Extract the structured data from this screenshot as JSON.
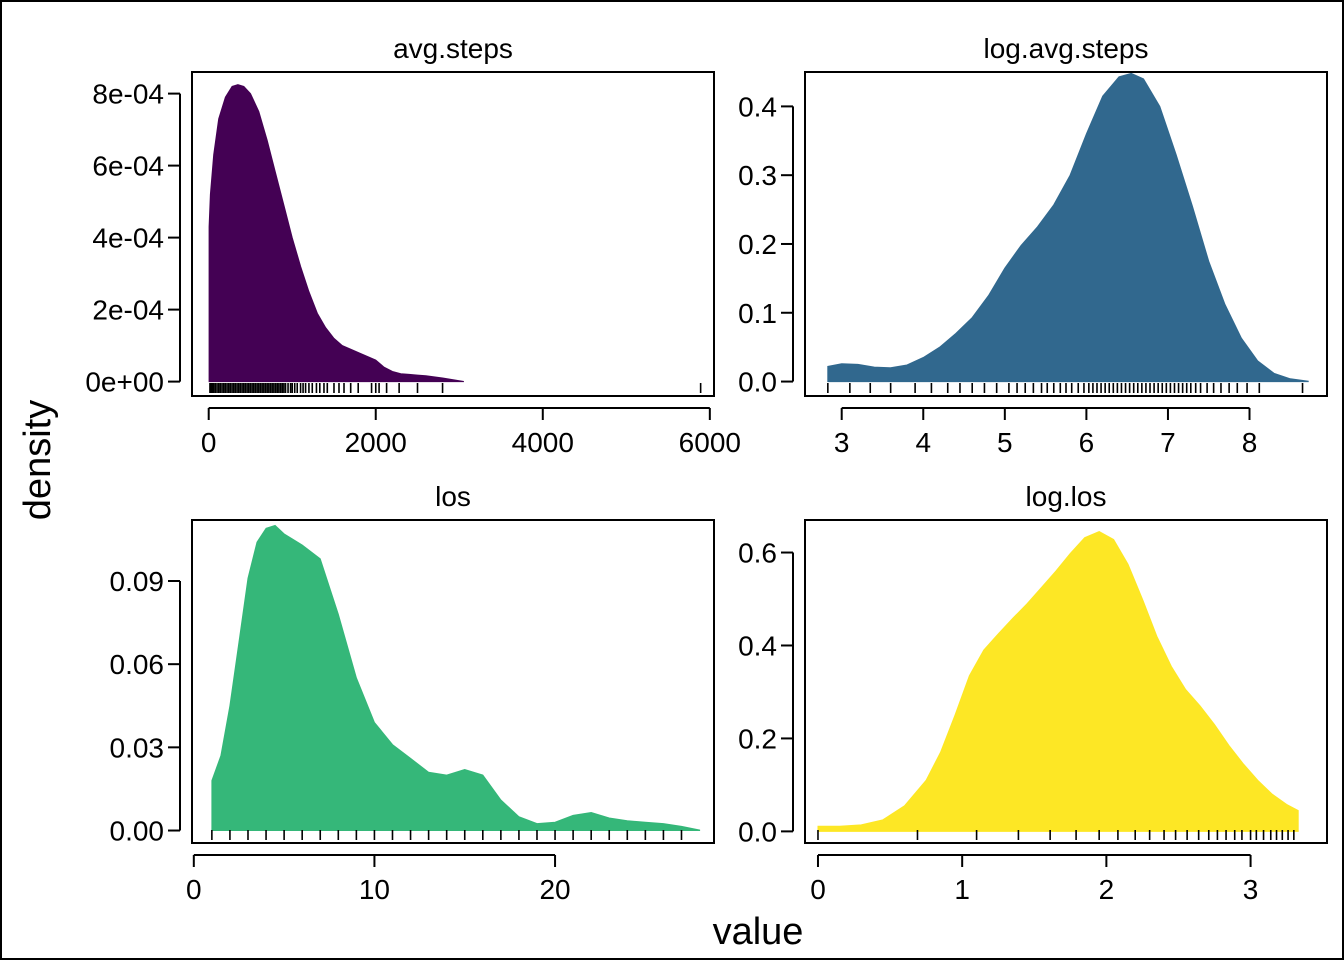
{
  "figure": {
    "xlabel": "value",
    "ylabel": "density"
  },
  "chart_data": [
    {
      "type": "area",
      "title": "avg.steps",
      "color": "#440154",
      "xlim": [
        -200,
        6050
      ],
      "ylim": [
        -4e-05,
        0.00086
      ],
      "xticks": [
        0,
        2000,
        4000,
        6000
      ],
      "xtick_labels": [
        "0",
        "2000",
        "4000",
        "6000"
      ],
      "yticks": [
        0,
        0.0002,
        0.0004,
        0.0006,
        0.0008
      ],
      "ytick_labels": [
        "0e+00",
        "2e-04",
        "4e-04",
        "6e-04",
        "8e-04"
      ],
      "x": [
        5,
        20,
        60,
        120,
        200,
        280,
        350,
        420,
        500,
        600,
        700,
        800,
        900,
        1000,
        1100,
        1200,
        1300,
        1400,
        1500,
        1600,
        1700,
        1800,
        1900,
        2000,
        2100,
        2200,
        2300,
        2400,
        2500,
        2600,
        2700,
        2800,
        2900,
        3050
      ],
      "y": [
        0.00043,
        0.00052,
        0.00063,
        0.00073,
        0.00079,
        0.00082,
        0.000825,
        0.00082,
        0.0008,
        0.00075,
        0.00067,
        0.00058,
        0.00049,
        0.0004,
        0.00032,
        0.00025,
        0.00019,
        0.00015,
        0.00012,
        0.0001,
        9e-05,
        8e-05,
        7e-05,
        6e-05,
        4e-05,
        2.8e-05,
        2.2e-05,
        2e-05,
        1.8e-05,
        1.6e-05,
        1.3e-05,
        1e-05,
        6e-06,
        5e-07
      ],
      "rug": [
        15,
        30,
        45,
        60,
        80,
        100,
        120,
        140,
        160,
        180,
        200,
        220,
        240,
        260,
        280,
        300,
        320,
        340,
        360,
        380,
        400,
        420,
        440,
        460,
        480,
        500,
        520,
        540,
        560,
        580,
        600,
        620,
        640,
        660,
        680,
        700,
        720,
        740,
        760,
        780,
        800,
        820,
        840,
        860,
        880,
        900,
        920,
        950,
        980,
        1000,
        1030,
        1060,
        1100,
        1130,
        1160,
        1200,
        1240,
        1290,
        1330,
        1380,
        1420,
        1500,
        1560,
        1620,
        1700,
        1790,
        1950,
        2000,
        2040,
        2130,
        2280,
        2500,
        2800,
        5890
      ]
    },
    {
      "type": "area",
      "title": "log.avg.steps",
      "color": "#31688e",
      "xlim": [
        2.55,
        8.95
      ],
      "ylim": [
        -0.021,
        0.45
      ],
      "xticks": [
        3,
        4,
        5,
        6,
        7,
        8
      ],
      "xtick_labels": [
        "3",
        "4",
        "5",
        "6",
        "7",
        "8"
      ],
      "yticks": [
        0,
        0.1,
        0.2,
        0.3,
        0.4
      ],
      "ytick_labels": [
        "0.0",
        "0.1",
        "0.2",
        "0.3",
        "0.4"
      ],
      "x": [
        2.83,
        3.0,
        3.2,
        3.4,
        3.6,
        3.8,
        4.0,
        4.2,
        4.4,
        4.6,
        4.8,
        5.0,
        5.2,
        5.4,
        5.6,
        5.8,
        6.0,
        6.2,
        6.4,
        6.55,
        6.7,
        6.9,
        7.1,
        7.3,
        7.5,
        7.7,
        7.9,
        8.1,
        8.3,
        8.5,
        8.72
      ],
      "y": [
        0.022,
        0.026,
        0.025,
        0.021,
        0.02,
        0.024,
        0.035,
        0.05,
        0.07,
        0.093,
        0.125,
        0.165,
        0.198,
        0.225,
        0.257,
        0.3,
        0.36,
        0.415,
        0.443,
        0.448,
        0.44,
        0.4,
        0.33,
        0.255,
        0.175,
        0.112,
        0.063,
        0.03,
        0.012,
        0.004,
        0.0005
      ],
      "rug": [
        2.83,
        3.1,
        3.35,
        3.6,
        3.9,
        4.1,
        4.3,
        4.45,
        4.6,
        4.75,
        4.9,
        5.05,
        5.15,
        5.25,
        5.35,
        5.45,
        5.52,
        5.6,
        5.68,
        5.75,
        5.82,
        5.9,
        5.97,
        6.03,
        6.08,
        6.13,
        6.18,
        6.23,
        6.28,
        6.33,
        6.38,
        6.43,
        6.48,
        6.53,
        6.58,
        6.63,
        6.68,
        6.73,
        6.78,
        6.83,
        6.88,
        6.93,
        6.98,
        7.03,
        7.08,
        7.13,
        7.18,
        7.23,
        7.28,
        7.34,
        7.4,
        7.48,
        7.56,
        7.65,
        7.75,
        7.85,
        7.97,
        8.12,
        8.65
      ]
    },
    {
      "type": "area",
      "title": "los",
      "color": "#35b779",
      "xlim": [
        -0.1,
        28.8
      ],
      "ylim": [
        -0.0045,
        0.112
      ],
      "xticks": [
        0,
        10,
        20
      ],
      "xtick_labels": [
        "0",
        "10",
        "20"
      ],
      "yticks": [
        0,
        0.03,
        0.06,
        0.09
      ],
      "ytick_labels": [
        "0.00",
        "0.03",
        "0.06",
        "0.09"
      ],
      "x": [
        1,
        1.5,
        2,
        2.5,
        3,
        3.5,
        4,
        4.5,
        5,
        5.5,
        6,
        7,
        8,
        9,
        10,
        11,
        12,
        13,
        14,
        15,
        16,
        17,
        18,
        19,
        20,
        21,
        22,
        23,
        24,
        25,
        26,
        27,
        28
      ],
      "y": [
        0.018,
        0.027,
        0.045,
        0.068,
        0.091,
        0.104,
        0.109,
        0.11,
        0.107,
        0.105,
        0.103,
        0.098,
        0.078,
        0.055,
        0.039,
        0.031,
        0.026,
        0.021,
        0.02,
        0.022,
        0.02,
        0.011,
        0.005,
        0.0025,
        0.003,
        0.0055,
        0.0065,
        0.0045,
        0.0035,
        0.003,
        0.0025,
        0.0015,
        0.0002
      ],
      "rug": [
        1,
        2,
        3,
        4,
        5,
        6,
        7,
        8,
        9,
        10,
        11,
        12,
        13,
        14,
        15,
        16,
        17,
        18,
        19,
        20,
        21,
        22,
        23,
        24,
        25,
        26,
        27
      ]
    },
    {
      "type": "area",
      "title": "log.los",
      "color": "#fde725",
      "xlim": [
        -0.09,
        3.53
      ],
      "ylim": [
        -0.025,
        0.67
      ],
      "xticks": [
        0,
        1,
        2,
        3
      ],
      "xtick_labels": [
        "0",
        "1",
        "2",
        "3"
      ],
      "yticks": [
        0,
        0.2,
        0.4,
        0.6
      ],
      "ytick_labels": [
        "0.0",
        "0.2",
        "0.4",
        "0.6"
      ],
      "x": [
        0,
        0.15,
        0.3,
        0.45,
        0.6,
        0.75,
        0.85,
        0.95,
        1.05,
        1.15,
        1.25,
        1.35,
        1.45,
        1.55,
        1.65,
        1.75,
        1.85,
        1.95,
        2.05,
        2.15,
        2.25,
        2.35,
        2.45,
        2.55,
        2.65,
        2.75,
        2.85,
        2.95,
        3.05,
        3.15,
        3.25,
        3.33
      ],
      "y": [
        0.011,
        0.011,
        0.014,
        0.025,
        0.055,
        0.11,
        0.17,
        0.25,
        0.335,
        0.39,
        0.425,
        0.458,
        0.49,
        0.525,
        0.56,
        0.598,
        0.632,
        0.645,
        0.628,
        0.575,
        0.5,
        0.42,
        0.355,
        0.305,
        0.27,
        0.23,
        0.185,
        0.145,
        0.11,
        0.08,
        0.058,
        0.045
      ],
      "rug": [
        0,
        0.69,
        1.1,
        1.39,
        1.61,
        1.79,
        1.95,
        2.08,
        2.2,
        2.3,
        2.4,
        2.48,
        2.56,
        2.64,
        2.71,
        2.77,
        2.83,
        2.89,
        2.94,
        3.0,
        3.04,
        3.09,
        3.14,
        3.18,
        3.22,
        3.26,
        3.3
      ]
    }
  ]
}
